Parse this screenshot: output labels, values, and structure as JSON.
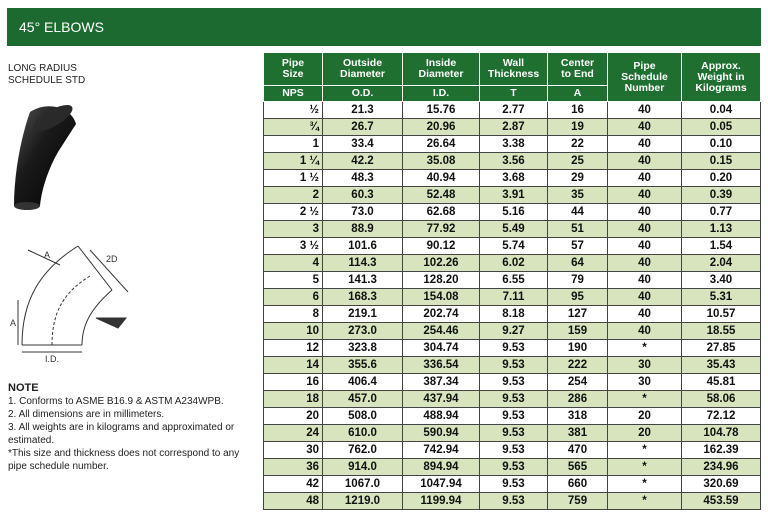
{
  "header": {
    "title": "45° ELBOWS"
  },
  "intro": {
    "lines": [
      "LONG RADIUS",
      "SCHEDULE STD"
    ]
  },
  "diagram": {
    "labels": [
      "A",
      "2D",
      "A",
      "I.D."
    ]
  },
  "notes": {
    "title": "NOTE",
    "items": [
      "1. Conforms to ASME B16.9 & ASTM A234WPB.",
      "2. All dimensions are in millimeters.",
      "3. All weights are in kilograms and approximated or estimated.",
      "*This size and thickness does not correspond to any pipe schedule number."
    ]
  },
  "table": {
    "columns": [
      [
        "Pipe",
        "Size"
      ],
      [
        "Outside",
        "Diameter"
      ],
      [
        "Inside",
        "Diameter"
      ],
      [
        "Wall",
        "Thickness"
      ],
      [
        "Center",
        "to End"
      ],
      [
        "Pipe",
        "Schedule",
        "Number"
      ],
      [
        "Approx.",
        "Weight in",
        "Kilograms"
      ]
    ],
    "subheaders": [
      "NPS",
      "O.D.",
      "I.D.",
      "T",
      "A"
    ],
    "rows": [
      [
        "½",
        "21.3",
        "15.76",
        "2.77",
        "16",
        "40",
        "0.04"
      ],
      [
        "¾",
        "26.7",
        "20.96",
        "2.87",
        "19",
        "40",
        "0.05"
      ],
      [
        "1",
        "33.4",
        "26.64",
        "3.38",
        "22",
        "40",
        "0.10"
      ],
      [
        "1 ¼",
        "42.2",
        "35.08",
        "3.56",
        "25",
        "40",
        "0.15"
      ],
      [
        "1 ½",
        "48.3",
        "40.94",
        "3.68",
        "29",
        "40",
        "0.20"
      ],
      [
        "2",
        "60.3",
        "52.48",
        "3.91",
        "35",
        "40",
        "0.39"
      ],
      [
        "2 ½",
        "73.0",
        "62.68",
        "5.16",
        "44",
        "40",
        "0.77"
      ],
      [
        "3",
        "88.9",
        "77.92",
        "5.49",
        "51",
        "40",
        "1.13"
      ],
      [
        "3 ½",
        "101.6",
        "90.12",
        "5.74",
        "57",
        "40",
        "1.54"
      ],
      [
        "4",
        "114.3",
        "102.26",
        "6.02",
        "64",
        "40",
        "2.04"
      ],
      [
        "5",
        "141.3",
        "128.20",
        "6.55",
        "79",
        "40",
        "3.40"
      ],
      [
        "6",
        "168.3",
        "154.08",
        "7.11",
        "95",
        "40",
        "5.31"
      ],
      [
        "8",
        "219.1",
        "202.74",
        "8.18",
        "127",
        "40",
        "10.57"
      ],
      [
        "10",
        "273.0",
        "254.46",
        "9.27",
        "159",
        "40",
        "18.55"
      ],
      [
        "12",
        "323.8",
        "304.74",
        "9.53",
        "190",
        "*",
        "27.85"
      ],
      [
        "14",
        "355.6",
        "336.54",
        "9.53",
        "222",
        "30",
        "35.43"
      ],
      [
        "16",
        "406.4",
        "387.34",
        "9.53",
        "254",
        "30",
        "45.81"
      ],
      [
        "18",
        "457.0",
        "437.94",
        "9.53",
        "286",
        "*",
        "58.06"
      ],
      [
        "20",
        "508.0",
        "488.94",
        "9.53",
        "318",
        "20",
        "72.12"
      ],
      [
        "24",
        "610.0",
        "590.94",
        "9.53",
        "381",
        "20",
        "104.78"
      ],
      [
        "30",
        "762.0",
        "742.94",
        "9.53",
        "470",
        "*",
        "162.39"
      ],
      [
        "36",
        "914.0",
        "894.94",
        "9.53",
        "565",
        "*",
        "234.96"
      ],
      [
        "42",
        "1067.0",
        "1047.94",
        "9.53",
        "660",
        "*",
        "320.69"
      ],
      [
        "48",
        "1219.0",
        "1199.94",
        "9.53",
        "759",
        "*",
        "453.59"
      ]
    ]
  }
}
